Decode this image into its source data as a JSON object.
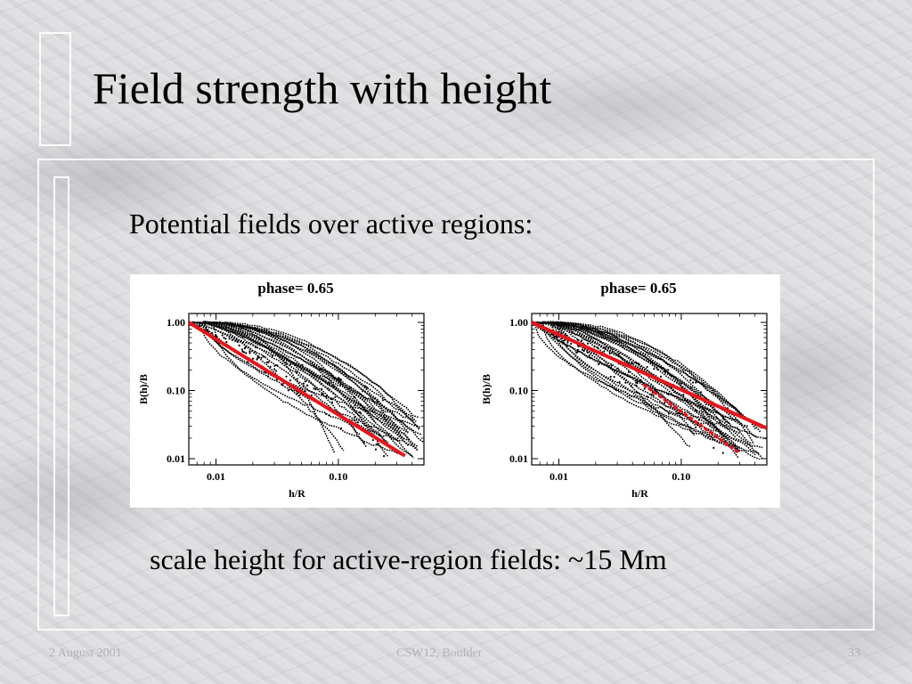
{
  "slide": {
    "title": "Field strength with height",
    "subtitle": "Potential fields over active regions:",
    "caption": "scale height for active-region fields: ~15 Mm"
  },
  "footer": {
    "date": "2 August 2001",
    "event": "CSW12, Boulder",
    "page": "33"
  },
  "colors": {
    "fit_line": "#e8141b",
    "data_points": "#000000",
    "background": "#dcdcdf"
  },
  "chart_data": [
    {
      "type": "scatter",
      "title": "phase= 0.65",
      "xlabel": "h/R",
      "ylabel": "B(h)/B",
      "x_scale": "log",
      "y_scale": "log",
      "xlim": [
        0.006,
        0.5
      ],
      "ylim": [
        0.01,
        1.0
      ],
      "x_ticks": [
        "0.01",
        "0.10"
      ],
      "y_ticks": [
        "1.00",
        "0.10",
        "0.01"
      ],
      "series": [
        {
          "style": "fit-line",
          "x": [
            0.006,
            0.35
          ],
          "y": [
            1.0,
            0.011
          ]
        }
      ]
    },
    {
      "type": "scatter",
      "title": "phase= 0.65",
      "xlabel": "h/R",
      "ylabel": "B(h)/B",
      "x_scale": "log",
      "y_scale": "log",
      "xlim": [
        0.006,
        0.5
      ],
      "ylim": [
        0.01,
        1.0
      ],
      "x_ticks": [
        "0.01",
        "0.10"
      ],
      "y_ticks": [
        "1.00",
        "0.10",
        "0.01"
      ],
      "series": [
        {
          "style": "fit-line",
          "x": [
            0.006,
            0.5
          ],
          "y": [
            1.0,
            0.028
          ]
        },
        {
          "style": "dotted-fit",
          "x": [
            0.05,
            0.3
          ],
          "y": [
            0.12,
            0.012
          ]
        }
      ]
    }
  ]
}
